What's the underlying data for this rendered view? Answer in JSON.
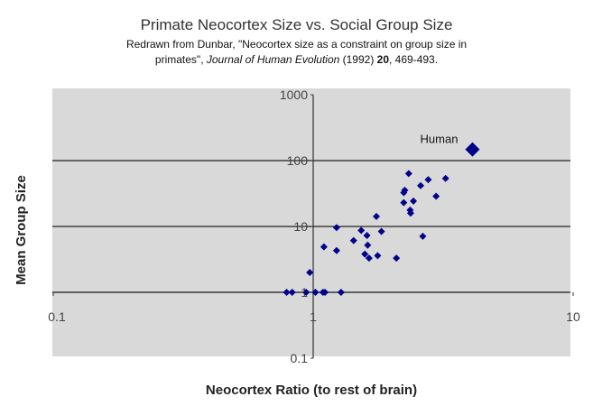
{
  "chart_data": {
    "type": "scatter",
    "title": "Primate Neocortex Size vs. Social Group Size",
    "subtitle": {
      "line1": "Redrawn from Dunbar, \"Neocortex size as a constraint on group size in",
      "line2_prefix": "primates\", ",
      "journal": "Journal of Human Evolution",
      "year": " (1992) ",
      "volume": "20",
      "pages": ", 469-493."
    },
    "xlabel": "Neocortex Ratio (to rest of brain)",
    "ylabel": "Mean Group Size",
    "xscale": "log",
    "yscale": "log",
    "xlim": [
      0.1,
      10
    ],
    "ylim": [
      0.1,
      1000
    ],
    "xticks": [
      "0.1",
      "1",
      "10"
    ],
    "yticks": [
      "0.1",
      "1",
      "10",
      "100",
      "1000"
    ],
    "grid": "horizontal major",
    "background": "#d9d9d9",
    "marker_color": "#00008b",
    "points": [
      [
        0.79,
        1
      ],
      [
        0.83,
        1
      ],
      [
        0.94,
        1
      ],
      [
        1.02,
        1
      ],
      [
        1.09,
        1
      ],
      [
        1.11,
        1
      ],
      [
        1.28,
        1
      ],
      [
        0.97,
        2.0
      ],
      [
        1.1,
        4.9
      ],
      [
        1.23,
        4.3
      ],
      [
        1.23,
        9.6
      ],
      [
        1.43,
        6.1
      ],
      [
        1.53,
        8.7
      ],
      [
        1.61,
        7.3
      ],
      [
        1.62,
        5.2
      ],
      [
        1.58,
        3.8
      ],
      [
        1.64,
        3.3
      ],
      [
        1.77,
        3.6
      ],
      [
        1.75,
        14.2
      ],
      [
        1.83,
        8.4
      ],
      [
        2.09,
        3.3
      ],
      [
        2.23,
        32.6
      ],
      [
        2.25,
        35.5
      ],
      [
        2.23,
        23
      ],
      [
        2.33,
        63.5
      ],
      [
        2.43,
        24.3
      ],
      [
        2.36,
        17.7
      ],
      [
        2.37,
        15.9
      ],
      [
        2.59,
        41.6
      ],
      [
        2.77,
        51.4
      ],
      [
        2.97,
        28.8
      ],
      [
        2.64,
        7.1
      ],
      [
        3.23,
        53.6
      ]
    ],
    "highlight": {
      "label": "Human",
      "x": 4.1,
      "y": 148
    }
  }
}
